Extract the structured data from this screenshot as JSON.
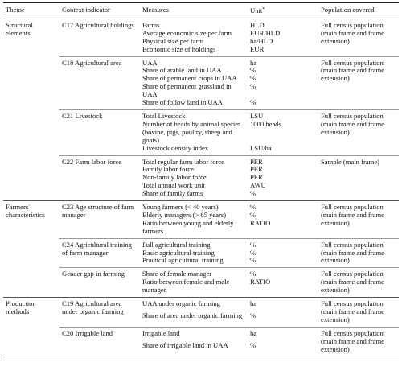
{
  "table": {
    "header": {
      "theme": "Theme",
      "indicator": "Context indicator",
      "measures": "Measures",
      "unit": "Unit",
      "unit_note": "*",
      "population": "Population covered"
    },
    "groups": [
      {
        "theme": "Structural elements",
        "indicators": [
          {
            "indicator": "C17 Agricultural holdings",
            "population": "Full census population (main frame and frame extension)",
            "measures": [
              {
                "measure": "Farms",
                "unit": "HLD"
              },
              {
                "measure": "Average economic size per farm",
                "unit": "EUR/HLD"
              },
              {
                "measure": "Physical size per farm",
                "unit": "ha/HLD"
              },
              {
                "measure": "Economic size of holdings",
                "unit": "EUR"
              }
            ]
          },
          {
            "indicator": "C18 Agricultural area",
            "population": "Full census population (main frame and frame extension)",
            "measures": [
              {
                "measure": "UAA",
                "unit": "ha"
              },
              {
                "measure": "Share of arable land in UAA",
                "unit": "%"
              },
              {
                "measure": "Share of permanent crops in UAA",
                "unit": "%"
              },
              {
                "measure": "Share of permanent grassland in UAA",
                "unit": "%"
              },
              {
                "measure": "Share of follow land in UAA",
                "unit": "%"
              }
            ]
          },
          {
            "indicator": "C21 Livestock",
            "population": "Full census population (main frame and frame extension)",
            "measures": [
              {
                "measure": "Total Livestock",
                "unit": "LSU"
              },
              {
                "measure": "Number of heads by animal species (bovine, pigs, poultry, sheep and goats)",
                "unit": "1000 heads"
              },
              {
                "measure": "Livestock density index",
                "unit": "LSU/ha"
              }
            ]
          },
          {
            "indicator": "C22 Farm labor force",
            "population": "Sample (main frame)",
            "measures": [
              {
                "measure": "Total regular farm labor force",
                "unit": "PER"
              },
              {
                "measure": "Family labor force",
                "unit": "PER"
              },
              {
                "measure": "Non-family labor force",
                "unit": "PER"
              },
              {
                "measure": "Total annual work unit",
                "unit": "AWU"
              },
              {
                "measure": "Share of family farms",
                "unit": "%"
              }
            ]
          }
        ]
      },
      {
        "theme": "Farmers` characteristics",
        "indicators": [
          {
            "indicator": "C23 Age structure of farm manager",
            "population": "Full census population (main frame and frame extension)",
            "measures": [
              {
                "measure": "Young farmers (< 40 years)",
                "unit": "%"
              },
              {
                "measure": "Elderly managers (> 65 years)",
                "unit": "%"
              },
              {
                "measure": "Ratio between young and elderly farmers",
                "unit": "RATIO"
              }
            ]
          },
          {
            "indicator": "C24 Agricultural training of farm manager",
            "population": "Full census population (main frame and frame extension)",
            "measures": [
              {
                "measure": "Full agricultural training",
                "unit": "%"
              },
              {
                "measure": "Basic agricultural training",
                "unit": "%"
              },
              {
                "measure": "Practical agricultural training",
                "unit": "%"
              }
            ]
          },
          {
            "indicator": "Gender gap in farming",
            "population": "Full census population (main frame and frame extension)",
            "measures": [
              {
                "measure": "Share of female manager",
                "unit": "%"
              },
              {
                "measure": "Ratio between female and male manager",
                "unit": "RATIO"
              }
            ]
          }
        ]
      },
      {
        "theme": "Production methods",
        "indicators": [
          {
            "indicator": "C19 Agricultural area under organic farming",
            "population": "Full census population (main frame and frame extension)",
            "measures": [
              {
                "measure": "UAA under organic farming",
                "unit": "ha"
              },
              {
                "measure": "Share of area under organic farming",
                "unit": "%"
              }
            ]
          },
          {
            "indicator": "C20 Irrigable land",
            "population": "Full census population (main frame and frame extension)",
            "measures": [
              {
                "measure": "Irrigable land",
                "unit": "ha"
              },
              {
                "measure": "Share of irrigable land in UAA",
                "unit": "%"
              }
            ]
          }
        ]
      }
    ]
  }
}
